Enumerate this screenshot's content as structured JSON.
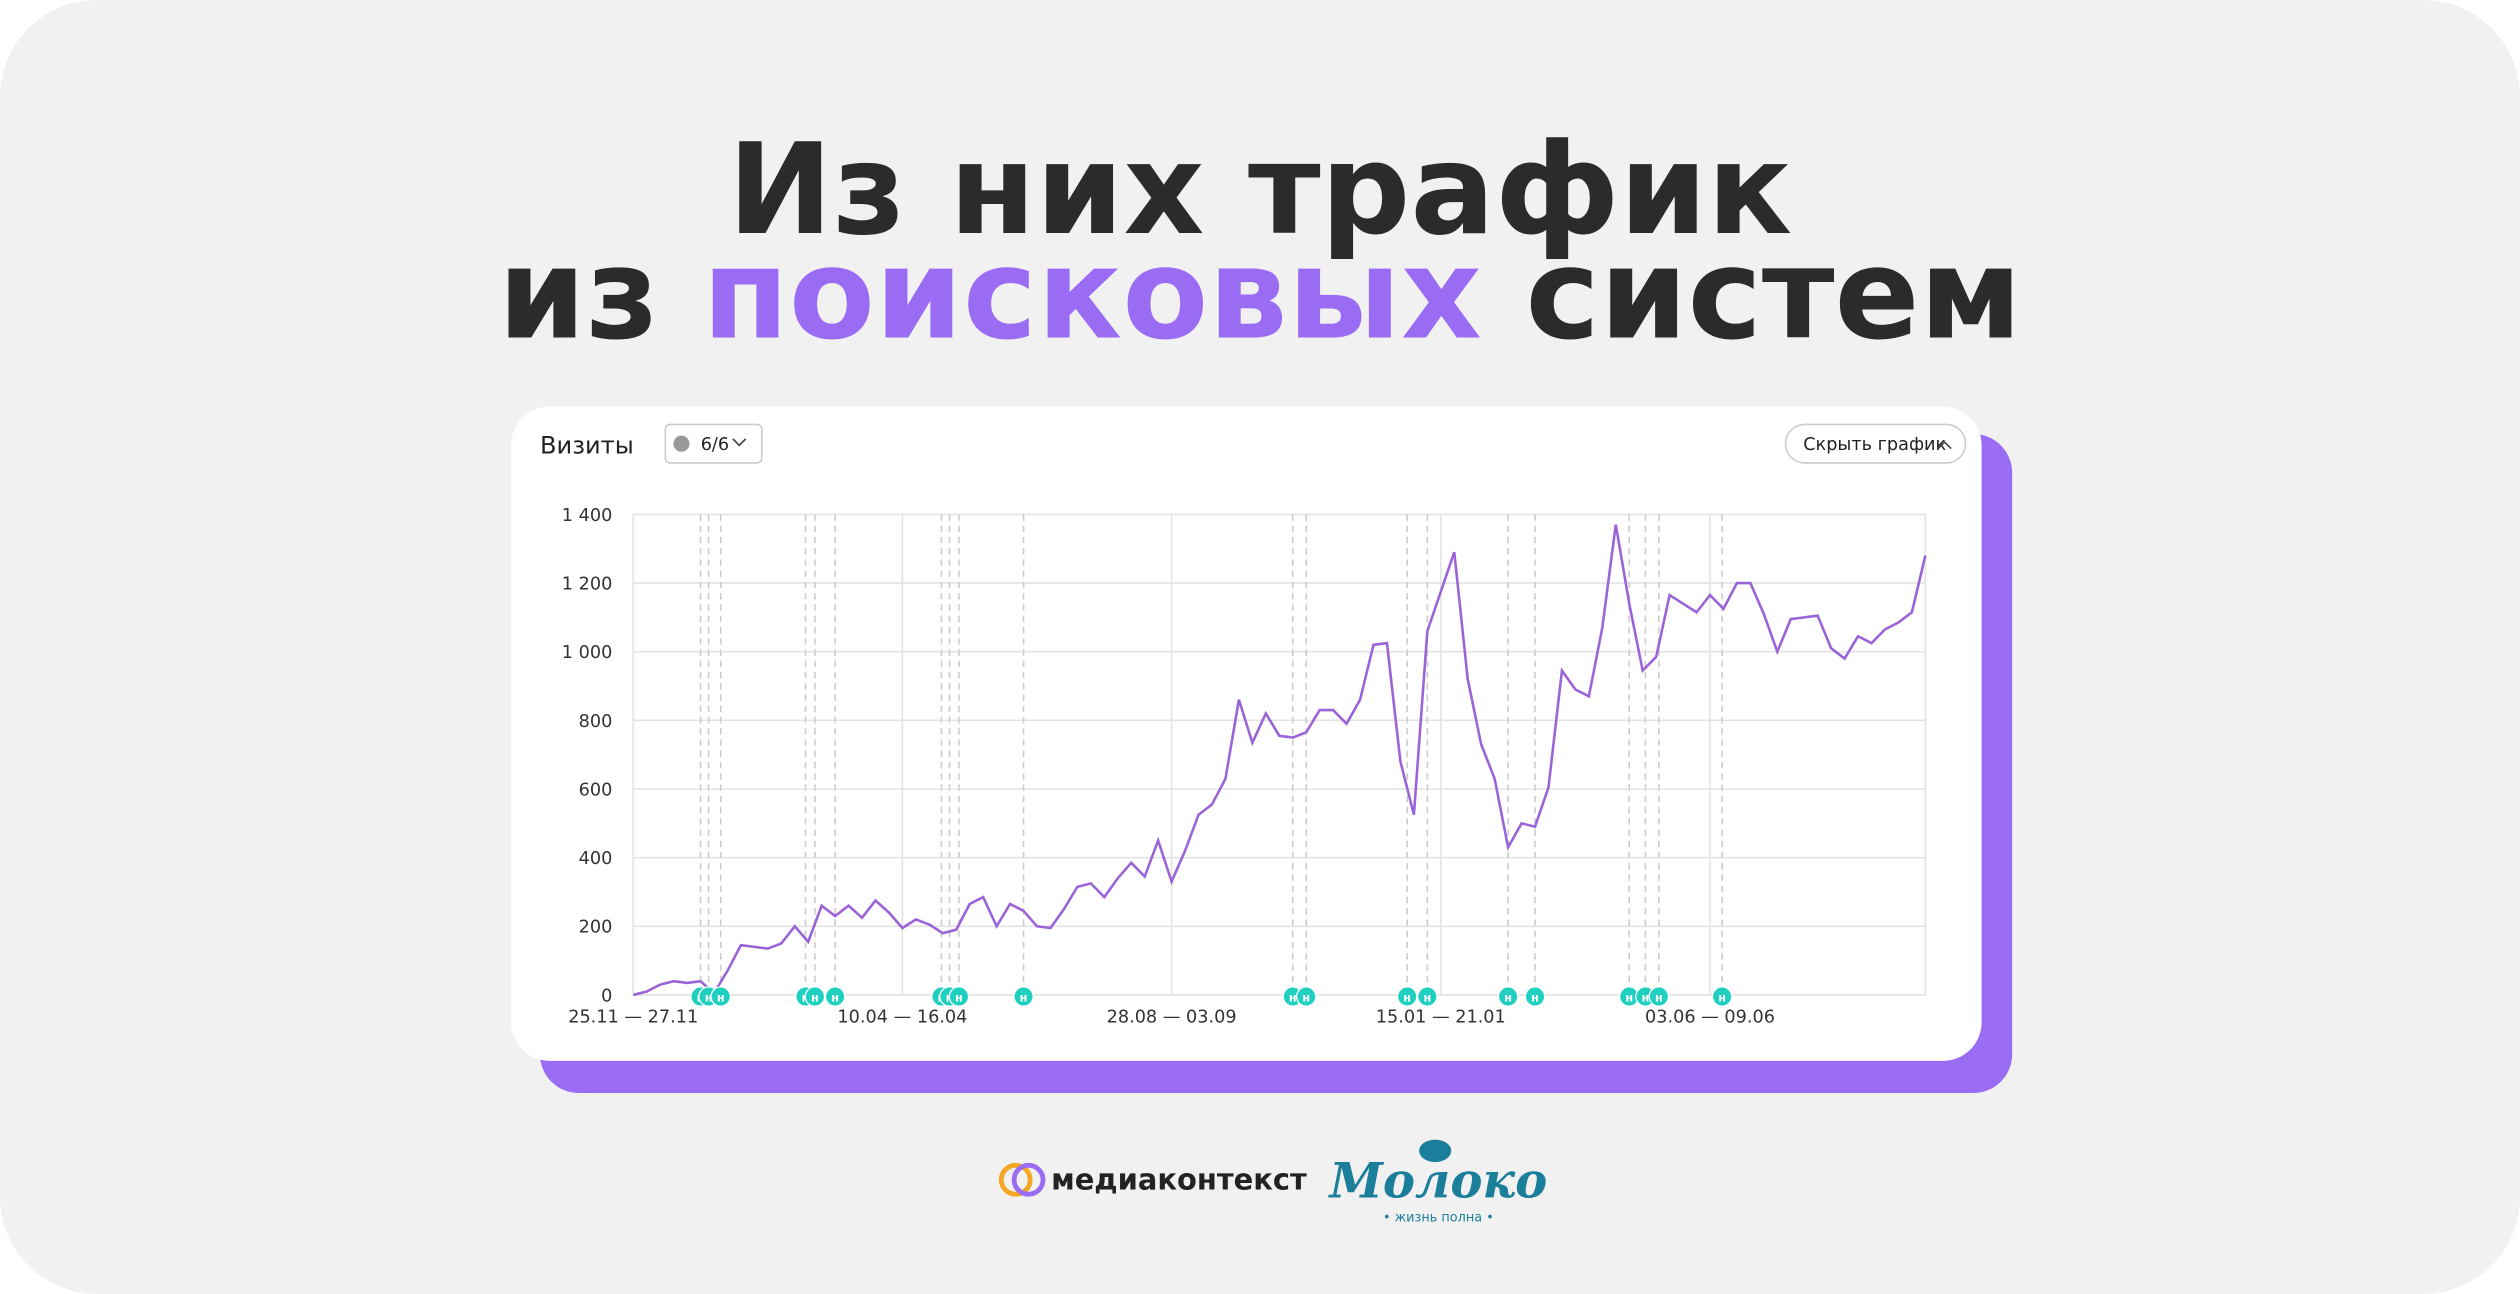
{
  "header": {
    "line1": "Из них трафик",
    "line2_start": "из",
    "line2_highlight": "поисковых",
    "line2_end": "систем"
  },
  "chart_data": {
    "type": "line",
    "title": "Визиты",
    "filter": "6/6",
    "button": "Скрыть график",
    "color": "#9b63d8",
    "grid": true,
    "categories": [
      "25.11 — 27.11",
      null,
      null,
      null,
      null,
      null,
      null,
      null,
      null,
      null,
      null,
      null,
      null,
      null,
      null,
      null,
      null,
      null,
      null,
      null,
      "10.04 — 16.04",
      null,
      null,
      null,
      null,
      null,
      null,
      null,
      null,
      null,
      null,
      null,
      null,
      null,
      null,
      null,
      null,
      null,
      null,
      null,
      "28.08 — 03.09",
      null,
      null,
      null,
      null,
      null,
      null,
      null,
      null,
      null,
      null,
      null,
      null,
      null,
      null,
      null,
      null,
      null,
      null,
      null,
      "15.01 — 21.01",
      null,
      null,
      null,
      null,
      null,
      null,
      null,
      null,
      null,
      null,
      null,
      null,
      null,
      null,
      null,
      null,
      null,
      null,
      null,
      "03.06 — 09.06",
      null,
      null,
      null,
      null,
      null,
      null,
      null,
      null,
      null,
      null,
      null,
      null,
      null,
      null,
      null,
      null
    ],
    "values": [
      0,
      10,
      30,
      40,
      35,
      40,
      5,
      70,
      145,
      140,
      135,
      150,
      200,
      155,
      260,
      230,
      260,
      225,
      275,
      240,
      195,
      220,
      205,
      180,
      190,
      265,
      285,
      200,
      265,
      245,
      200,
      195,
      250,
      315,
      325,
      285,
      340,
      385,
      345,
      450,
      330,
      420,
      525,
      555,
      630,
      860,
      735,
      820,
      755,
      750,
      765,
      830,
      830,
      790,
      860,
      1020,
      1025,
      680,
      525,
      1060,
      1175,
      1290,
      920,
      730,
      630,
      430,
      500,
      490,
      605,
      945,
      890,
      870,
      1070,
      1370,
      1140,
      945,
      985,
      1165,
      1140,
      1115,
      1165,
      1125,
      1200,
      1200,
      1110,
      1000,
      1095,
      1100,
      1105,
      1010,
      980,
      1045,
      1025,
      1065,
      1085,
      1115,
      1280
    ],
    "ylim": [
      0,
      1400
    ],
    "yticks": [
      0,
      200,
      400,
      600,
      800,
      {
        "value": 1000,
        "label": "1 000"
      },
      {
        "value": 1200,
        "label": "1 200"
      },
      {
        "value": 1400,
        "label": "1 400"
      }
    ],
    "annotations": [
      {
        "x": 5,
        "label": "н"
      },
      {
        "x": 5.6,
        "label": "н"
      },
      {
        "x": 6.5,
        "label": "н"
      },
      {
        "x": 12.8,
        "label": "н"
      },
      {
        "x": 13.5,
        "label": "н"
      },
      {
        "x": 15,
        "label": "н"
      },
      {
        "x": 22.9,
        "label": "н"
      },
      {
        "x": 23.5,
        "label": "н"
      },
      {
        "x": 24.2,
        "label": "н"
      },
      {
        "x": 29,
        "label": "н"
      },
      {
        "x": 49,
        "label": "н"
      },
      {
        "x": 50,
        "label": "н"
      },
      {
        "x": 57.5,
        "label": "н"
      },
      {
        "x": 59,
        "label": "н"
      },
      {
        "x": 65,
        "label": "н"
      },
      {
        "x": 67,
        "label": "н"
      },
      {
        "x": 74,
        "label": "н"
      },
      {
        "x": 75.2,
        "label": "н"
      },
      {
        "x": 76.2,
        "label": "н"
      },
      {
        "x": 80.9,
        "label": "н"
      }
    ]
  },
  "footer": {
    "brand1": "медиаконтекст",
    "brand2": "Молоко",
    "tagline": "• жизнь полна •"
  }
}
